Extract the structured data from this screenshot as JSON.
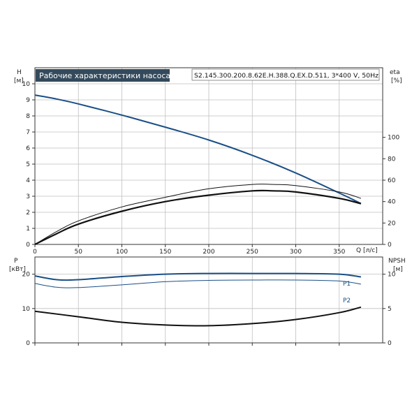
{
  "title": "Рабочие характеристики насоса",
  "model": "S2.145.300.200.8.62E.H.388.Q.EX.D.511, 3*400 V, 50Hz",
  "colors": {
    "blue": "#1a4f86",
    "black": "#111111",
    "grid": "#bfbfbf",
    "title_bg": "#344a5c"
  },
  "chart_data": [
    {
      "type": "line",
      "name_top": "performance",
      "x_ticks": [
        "0",
        "50",
        "100",
        "150",
        "200",
        "250",
        "300",
        "350"
      ],
      "xlim": [
        0,
        400
      ],
      "xlabel": "Q [л/с]",
      "ylabel_left": "H",
      "ylabel_left_unit": "[м]",
      "ylim_left": [
        0,
        11
      ],
      "y_ticks_left": [
        "0",
        "1",
        "2",
        "3",
        "4",
        "5",
        "6",
        "7",
        "8",
        "9",
        "10"
      ],
      "ylabel_right": "eta",
      "ylabel_right_unit": "[%]",
      "ylim_right": [
        0,
        165
      ],
      "y_ticks_right": [
        "0",
        "20",
        "40",
        "60",
        "80",
        "100"
      ],
      "grid": true,
      "series": [
        {
          "key": "H",
          "axis": "left",
          "color": "#1a4f86",
          "width": 2,
          "x": [
            0,
            25,
            50,
            100,
            150,
            200,
            250,
            300,
            350,
            375
          ],
          "y": [
            9.3,
            9.05,
            8.75,
            8.05,
            7.3,
            6.5,
            5.55,
            4.45,
            3.2,
            2.55
          ]
        },
        {
          "key": "eta1",
          "axis": "right",
          "color": "#111111",
          "width": 1,
          "x": [
            0,
            25,
            50,
            100,
            150,
            200,
            250,
            275,
            300,
            350,
            375
          ],
          "y": [
            0,
            12,
            22,
            35,
            44,
            52,
            56,
            56,
            55,
            49,
            43
          ]
        },
        {
          "key": "eta2",
          "axis": "right",
          "color": "#111111",
          "width": 2.2,
          "x": [
            0,
            25,
            50,
            100,
            150,
            200,
            250,
            275,
            300,
            350,
            375
          ],
          "y": [
            0,
            10,
            19,
            31,
            40,
            46,
            50,
            50,
            49,
            43,
            38
          ]
        }
      ]
    },
    {
      "type": "line",
      "name_top": "power",
      "xlim": [
        0,
        400
      ],
      "ylabel_left": "P",
      "ylabel_left_unit": "[кВт]",
      "ylim_left": [
        0,
        25
      ],
      "y_ticks_left": [
        "0",
        "10",
        "20"
      ],
      "ylabel_right": "NPSH",
      "ylabel_right_unit": "[м]",
      "ylim_right": [
        0,
        12.5
      ],
      "y_ticks_right": [
        "0",
        "5",
        "10"
      ],
      "grid": true,
      "series": [
        {
          "key": "P1",
          "name": "P1",
          "axis": "left",
          "color": "#1a4f86",
          "width": 2,
          "x": [
            0,
            25,
            50,
            100,
            150,
            200,
            250,
            300,
            350,
            375
          ],
          "y": [
            19.5,
            18.4,
            18.4,
            19.3,
            20.0,
            20.2,
            20.2,
            20.2,
            20.0,
            19.2
          ]
        },
        {
          "key": "P2",
          "name": "P2",
          "axis": "left",
          "color": "#1a4f86",
          "width": 1,
          "x": [
            0,
            25,
            50,
            100,
            150,
            200,
            250,
            300,
            350,
            375
          ],
          "y": [
            17.3,
            16.2,
            16.1,
            16.9,
            17.8,
            18.2,
            18.3,
            18.3,
            18.0,
            17.1
          ]
        },
        {
          "key": "NPSH",
          "axis": "right",
          "color": "#111111",
          "width": 2,
          "x": [
            0,
            50,
            100,
            150,
            200,
            250,
            300,
            350,
            375
          ],
          "y": [
            4.6,
            3.8,
            3.0,
            2.6,
            2.5,
            2.8,
            3.4,
            4.4,
            5.2
          ]
        }
      ]
    }
  ]
}
